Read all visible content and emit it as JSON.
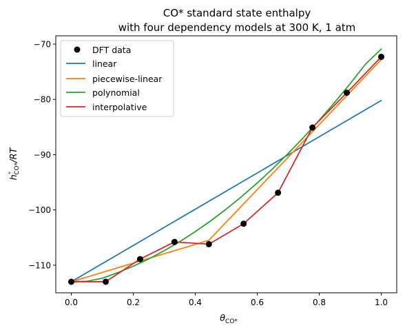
{
  "chart_data": {
    "type": "line",
    "title_line1": "CO* standard state enthalpy",
    "title_line2": "with four dependency models at 300 K, 1 atm",
    "xlabel_main": "θ",
    "xlabel_sub": "CO*",
    "ylabel_main": "h",
    "ylabel_sup": "°",
    "ylabel_sub": "CO*",
    "ylabel_tail": "/RT",
    "xlim": [
      -0.05,
      1.05
    ],
    "ylim": [
      -115,
      -68.5
    ],
    "x_ticks": [
      0.0,
      0.2,
      0.4,
      0.6,
      0.8,
      1.0
    ],
    "x_tick_labels": [
      "0.0",
      "0.2",
      "0.4",
      "0.6",
      "0.8",
      "1.0"
    ],
    "y_ticks": [
      -110,
      -100,
      -90,
      -80,
      -70
    ],
    "y_tick_labels": [
      "−110",
      "−100",
      "−90",
      "−80",
      "−70"
    ],
    "legend_position": "top-left",
    "dft_data": {
      "name": "DFT data",
      "color": "#000000",
      "x": [
        0.0,
        0.111,
        0.222,
        0.333,
        0.444,
        0.556,
        0.667,
        0.778,
        0.889,
        1.0
      ],
      "y": [
        -113.0,
        -113.0,
        -108.9,
        -105.8,
        -106.2,
        -102.5,
        -96.9,
        -85.1,
        -78.8,
        -72.3
      ]
    },
    "series": [
      {
        "name": "linear",
        "color": "#1f77b4",
        "x": [
          0.0,
          1.0
        ],
        "y": [
          -113.0,
          -80.2
        ]
      },
      {
        "name": "piecewise-linear",
        "color": "#ff7f0e",
        "x": [
          0.0,
          0.444,
          1.0
        ],
        "y": [
          -113.0,
          -105.5,
          -72.8
        ]
      },
      {
        "name": "polynomial",
        "color": "#2ca02c",
        "x": [
          0.0,
          0.05,
          0.1,
          0.15,
          0.2,
          0.25,
          0.3,
          0.35,
          0.4,
          0.45,
          0.5,
          0.55,
          0.6,
          0.65,
          0.7,
          0.75,
          0.8,
          0.85,
          0.9,
          0.95,
          1.0
        ],
        "y": [
          -113.0,
          -112.92,
          -112.37,
          -111.35,
          -110.19,
          -108.87,
          -107.38,
          -105.74,
          -103.94,
          -101.97,
          -99.85,
          -97.57,
          -95.13,
          -92.53,
          -89.77,
          -86.85,
          -83.77,
          -80.53,
          -77.14,
          -73.58,
          -70.9
        ]
      },
      {
        "name": "interpolative",
        "color": "#d62728",
        "x": [
          0.0,
          0.111,
          0.222,
          0.333,
          0.444,
          0.556,
          0.667,
          0.778,
          0.889,
          1.0
        ],
        "y": [
          -113.0,
          -113.0,
          -108.9,
          -105.8,
          -106.2,
          -102.5,
          -96.9,
          -85.1,
          -78.8,
          -72.3
        ]
      }
    ]
  }
}
